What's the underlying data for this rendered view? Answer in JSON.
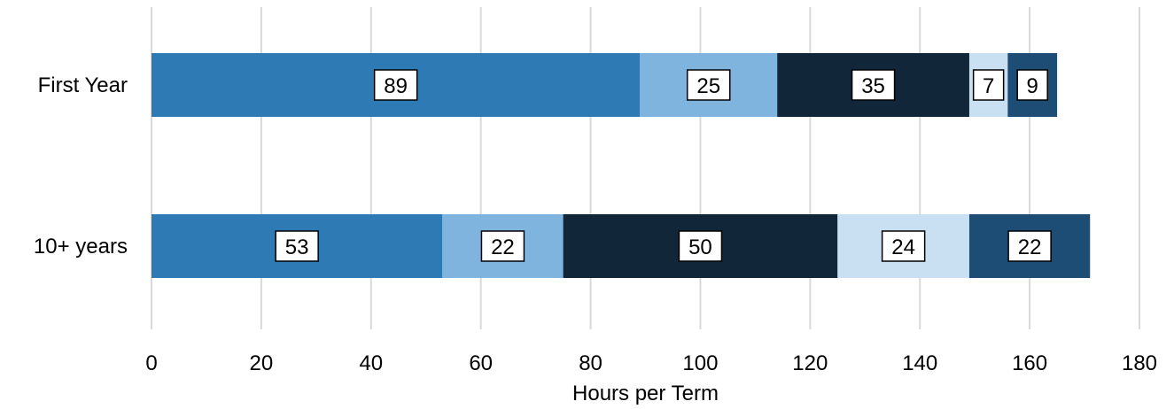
{
  "chart_data": {
    "type": "bar",
    "orientation": "horizontal",
    "stacked": true,
    "categories": [
      "First Year",
      "10+ years"
    ],
    "series": [
      {
        "values": [
          89,
          53
        ],
        "color": "#2e7ab5"
      },
      {
        "values": [
          25,
          22
        ],
        "color": "#7fb4df"
      },
      {
        "values": [
          35,
          50
        ],
        "color": "#12263a"
      },
      {
        "values": [
          7,
          24
        ],
        "color": "#c9dff2"
      },
      {
        "values": [
          9,
          22
        ],
        "color": "#1d4d75"
      }
    ],
    "xlabel": "Hours per Term",
    "ylabel": "",
    "xlim": [
      0,
      180
    ],
    "xticks": [
      0,
      20,
      40,
      60,
      80,
      100,
      120,
      140,
      160,
      180
    ],
    "grid": "vertical",
    "legend": "none",
    "data_labels": true
  }
}
